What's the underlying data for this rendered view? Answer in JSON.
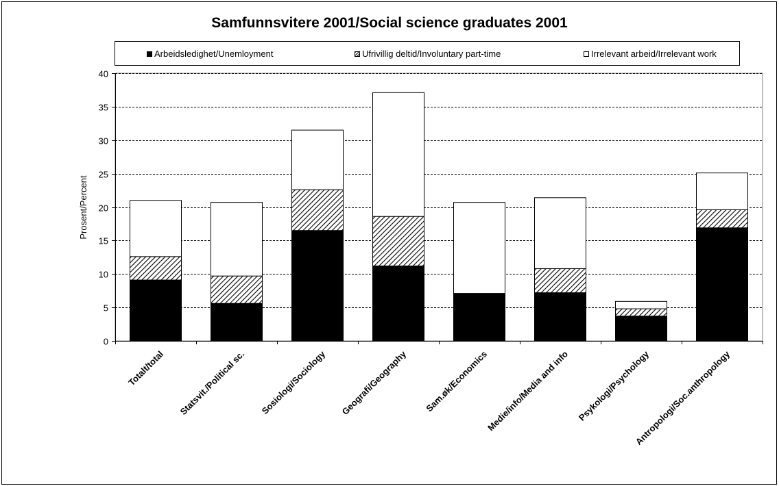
{
  "chart_data": {
    "type": "bar",
    "stacked": true,
    "title": "Samfunnsvitere 2001/Social science graduates 2001",
    "ylabel": "Prosent/Percent",
    "xlabel": "",
    "ylim": [
      0,
      40
    ],
    "yticks": [
      0,
      5,
      10,
      15,
      20,
      25,
      30,
      35,
      40
    ],
    "grid": true,
    "legend_position": "top",
    "categories": [
      "Totalt/total",
      "Statsvit./Political sc.",
      "Sosiologi/Sociology",
      "Geografi/Geography",
      "Sam.øk/Economics",
      "Medie/info/Media and info",
      "Psykologi/Psychology",
      "Antropologi/Soc.anthropology"
    ],
    "series": [
      {
        "name": "Arbeidsledighet/Unemloyment",
        "fill": "solid",
        "color": "#000000",
        "values": [
          9.1,
          5.6,
          16.5,
          11.2,
          7.1,
          7.2,
          3.7,
          16.9
        ]
      },
      {
        "name": "Ufrivillig deltid/Involuntary part-time",
        "fill": "hatch",
        "color": "#000000",
        "values": [
          3.5,
          4.1,
          6.1,
          7.4,
          0,
          3.6,
          1.1,
          2.7
        ]
      },
      {
        "name": "Irrelevant arbeid/Irrelevant work",
        "fill": "empty",
        "color": "#ffffff",
        "values": [
          8.4,
          11.0,
          8.9,
          18.5,
          13.6,
          10.6,
          1.1,
          5.5
        ]
      }
    ]
  }
}
